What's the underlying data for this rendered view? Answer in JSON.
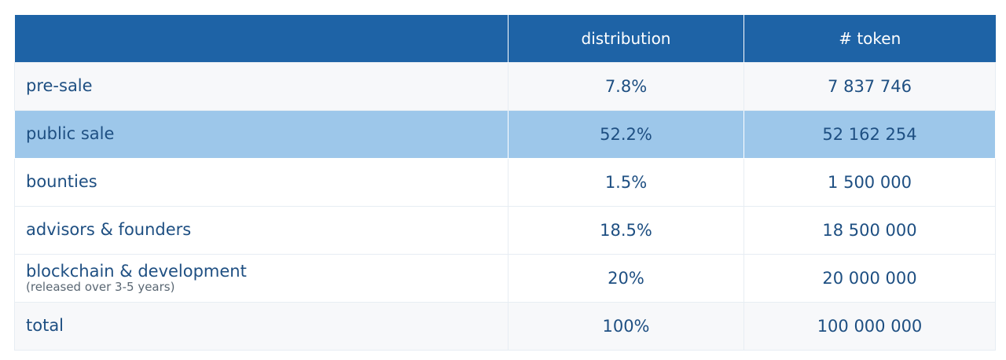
{
  "table": {
    "headers": [
      "",
      "distribution",
      "# token"
    ],
    "rows": [
      {
        "name": "pre-sale",
        "note": "",
        "distribution": "7.8%",
        "tokens": "7 837 746"
      },
      {
        "name": "public sale",
        "note": "",
        "distribution": "52.2%",
        "tokens": "52 162 254"
      },
      {
        "name": "bounties",
        "note": "",
        "distribution": "1.5%",
        "tokens": "1 500 000"
      },
      {
        "name": "advisors & founders",
        "note": "",
        "distribution": "18.5%",
        "tokens": "18 500 000"
      },
      {
        "name": "blockchain & development",
        "note": "(released over 3-5 years)",
        "distribution": "20%",
        "tokens": "20 000 000"
      },
      {
        "name": "total",
        "note": "",
        "distribution": "100%",
        "tokens": "100 000 000"
      }
    ]
  },
  "colors": {
    "header_bg": "#1e63a6",
    "header_text": "#ffffff",
    "body_text": "#1e4f82",
    "highlight_row": "#9dc7ea",
    "tinted_row": "#f7f8fa"
  }
}
